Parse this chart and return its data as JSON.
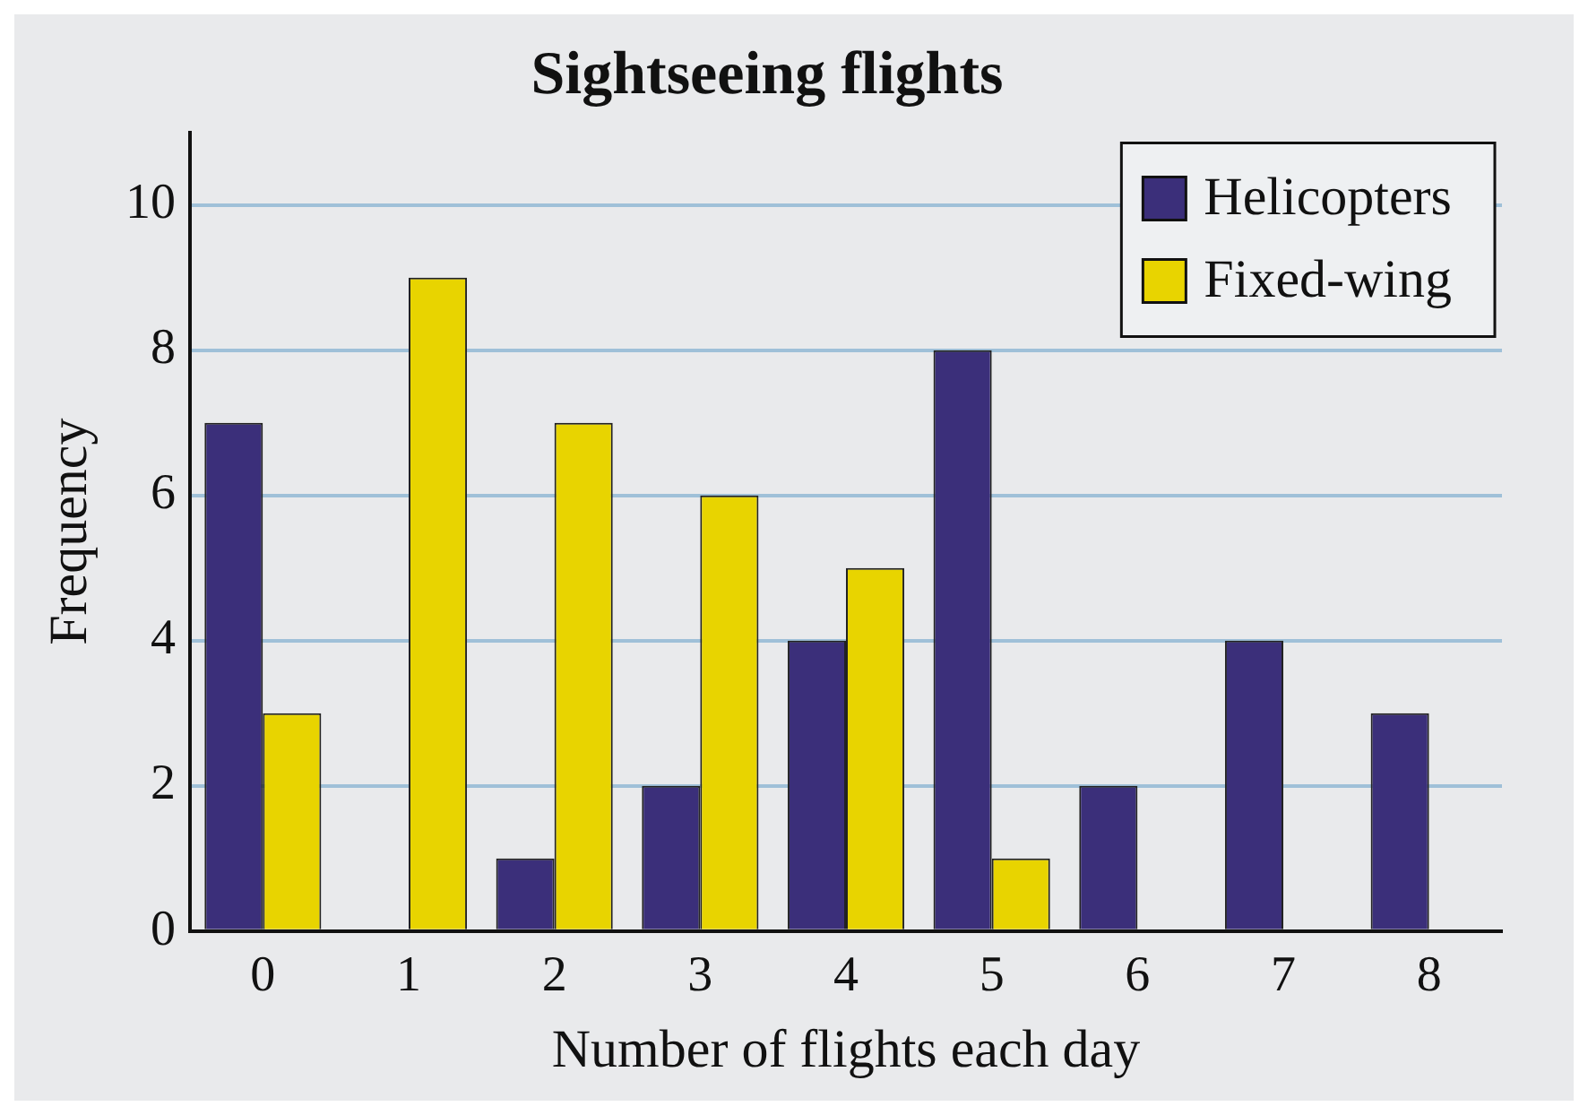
{
  "chart_data": {
    "type": "bar",
    "title": "Sightseeing flights",
    "xlabel": "Number of flights each day",
    "ylabel": "Frequency",
    "categories": [
      "0",
      "1",
      "2",
      "3",
      "4",
      "5",
      "6",
      "7",
      "8"
    ],
    "series": [
      {
        "name": "Helicopters",
        "color": "#3b2f7a",
        "values": [
          7,
          0,
          1,
          2,
          4,
          8,
          2,
          4,
          3
        ]
      },
      {
        "name": "Fixed-wing",
        "color": "#e8d400",
        "values": [
          3,
          9,
          7,
          6,
          5,
          1,
          0,
          0,
          0
        ]
      }
    ],
    "ylim": [
      0,
      11
    ],
    "yticks": [
      0,
      2,
      4,
      6,
      8,
      10
    ],
    "grid": "y",
    "legend": "top right"
  }
}
